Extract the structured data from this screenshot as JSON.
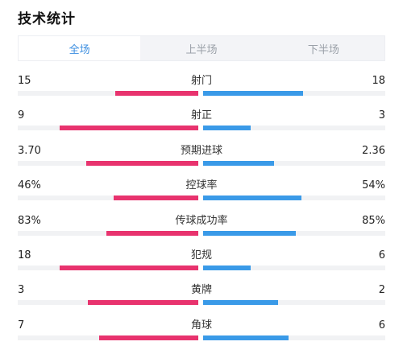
{
  "header": {
    "title": "技术统计"
  },
  "tabs": [
    {
      "label": "全场",
      "active": true
    },
    {
      "label": "上半场",
      "active": false
    },
    {
      "label": "下半场",
      "active": false
    }
  ],
  "colors": {
    "home": "#e8336e",
    "away": "#3a9ae8",
    "active_tab": "#3b8ee0"
  },
  "stats": [
    {
      "label": "射门",
      "home": "15",
      "away": "18",
      "home_share": 0.46,
      "away_share": 0.55
    },
    {
      "label": "射正",
      "home": "9",
      "away": "3",
      "home_share": 0.77,
      "away_share": 0.26
    },
    {
      "label": "预期进球",
      "home": "3.70",
      "away": "2.36",
      "home_share": 0.62,
      "away_share": 0.39
    },
    {
      "label": "控球率",
      "home": "46%",
      "away": "54%",
      "home_share": 0.47,
      "away_share": 0.54
    },
    {
      "label": "传球成功率",
      "home": "83%",
      "away": "85%",
      "home_share": 0.51,
      "away_share": 0.51
    },
    {
      "label": "犯规",
      "home": "18",
      "away": "6",
      "home_share": 0.77,
      "away_share": 0.26
    },
    {
      "label": "黄牌",
      "home": "3",
      "away": "2",
      "home_share": 0.61,
      "away_share": 0.41
    },
    {
      "label": "角球",
      "home": "7",
      "away": "6",
      "home_share": 0.55,
      "away_share": 0.47
    }
  ]
}
